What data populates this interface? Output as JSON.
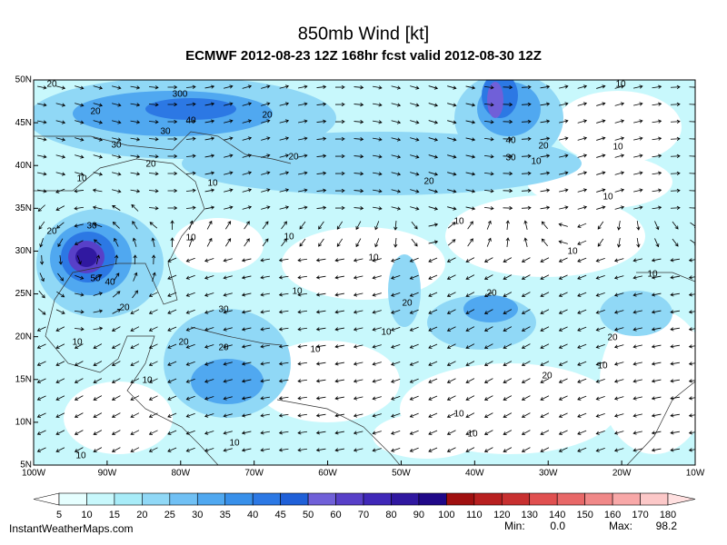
{
  "header": {
    "title": "850mb Wind [kt]",
    "subtitle": "ECMWF 2012-08-23 12Z 168hr fcst valid 2012-08-30 12Z"
  },
  "map": {
    "lat_labels": [
      "50N",
      "45N",
      "40N",
      "35N",
      "30N",
      "25N",
      "20N",
      "15N",
      "10N",
      "5N"
    ],
    "lon_labels": [
      "100W",
      "90W",
      "80W",
      "70W",
      "60W",
      "50W",
      "40W",
      "30W",
      "20W",
      "10W"
    ],
    "contour_labels": [
      "20",
      "300",
      "20",
      "40",
      "30",
      "20",
      "30",
      "20",
      "20",
      "10",
      "10",
      "20",
      "40",
      "30",
      "20",
      "10",
      "10",
      "10",
      "10",
      "10",
      "10",
      "10",
      "20",
      "30",
      "10",
      "10",
      "10",
      "10",
      "20",
      "20",
      "50",
      "40",
      "20",
      "30",
      "10",
      "20",
      "20",
      "20",
      "10",
      "10",
      "10",
      "20",
      "10",
      "10",
      "10",
      "10",
      "10"
    ]
  },
  "colorbar": {
    "levels": [
      5,
      10,
      15,
      20,
      25,
      30,
      35,
      40,
      45,
      50,
      60,
      70,
      80,
      90,
      100,
      110,
      120,
      130,
      140,
      150,
      160,
      170,
      180
    ],
    "colors": [
      "#ffffff",
      "#e6ffff",
      "#c8f8fc",
      "#a8ecf8",
      "#90d8f6",
      "#70c0f4",
      "#50a8f0",
      "#3890ea",
      "#2c78e4",
      "#2060d8",
      "#7060d8",
      "#5840c8",
      "#4028b8",
      "#3018a0",
      "#200888",
      "#a01010",
      "#b82020",
      "#c83030",
      "#e05050",
      "#e86868",
      "#f08888",
      "#f8a8a8",
      "#fcc8c8",
      "#ffe0e0"
    ]
  },
  "footer": {
    "site": "InstantWeatherMaps.com",
    "min_label": "Min:",
    "min_value": "0.0",
    "max_label": "Max:",
    "max_value": "98.2"
  }
}
